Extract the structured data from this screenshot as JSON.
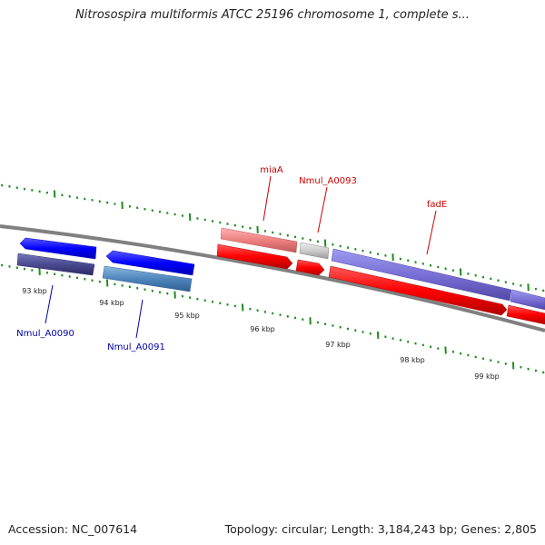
{
  "title": "Nitrosospira multiformis ATCC 25196 chromosome 1, complete s...",
  "footer": {
    "accession": "Accession: NC_007614",
    "summary": "Topology: circular; Length: 3,184,243 bp; Genes: 2,805"
  },
  "ticks": [
    {
      "label": "93 kbp"
    },
    {
      "label": "94 kbp"
    },
    {
      "label": "95 kbp"
    },
    {
      "label": "96 kbp"
    },
    {
      "label": "97 kbp"
    },
    {
      "label": "98 kbp"
    },
    {
      "label": "99 kbp"
    }
  ],
  "genes": [
    {
      "label": "Nmul_A0090",
      "strand": "minus",
      "color": "#0000ff"
    },
    {
      "label": "Nmul_A0091",
      "strand": "minus",
      "color": "#0000ff"
    },
    {
      "label": "miaA",
      "strand": "plus",
      "color": "#ff0000"
    },
    {
      "label": "Nmul_A0093",
      "strand": "plus",
      "color": "#ff0000"
    },
    {
      "label": "fadE",
      "strand": "plus",
      "color": "#ff0000"
    }
  ],
  "colors": {
    "backbone": "#808080",
    "tick": "#228b22",
    "plus_strand_gene": "#ff0000",
    "minus_strand_gene": "#0000ff",
    "label_plus": "#cc0000",
    "label_minus": "#0000aa"
  }
}
